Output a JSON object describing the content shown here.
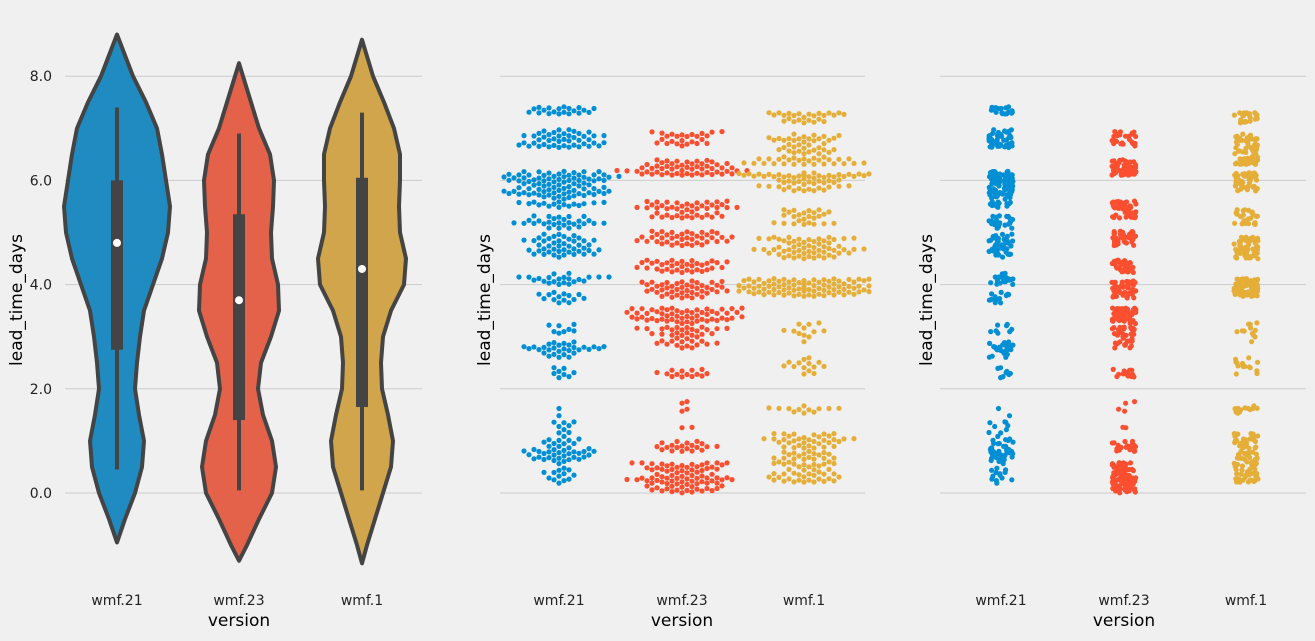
{
  "colors": {
    "background": "#f0f0f0",
    "grid": "#cbcbcb",
    "text": "#000000",
    "edge": "#444444",
    "violin_fills": [
      "#1f8bc1",
      "#e5624a",
      "#d0a54b"
    ],
    "point_colors": [
      "#008fd5",
      "#fc4f30",
      "#e5ae38"
    ]
  },
  "chart_data": [
    {
      "type": "violin",
      "xlabel": "version",
      "ylabel": "lead_time_days",
      "categories": [
        "wmf.21",
        "wmf.23",
        "wmf.1"
      ],
      "yticks": [
        "0.0",
        "2.0",
        "4.0",
        "6.0",
        "8.0"
      ],
      "ylim": [
        -1.7,
        9.0
      ],
      "grid": true,
      "violins": [
        {
          "name": "wmf.21",
          "min": 0.45,
          "q1": 2.75,
          "median": 4.8,
          "q3": 6.0,
          "max": 7.4,
          "extent": [
            -0.95,
            8.8
          ]
        },
        {
          "name": "wmf.23",
          "min": 0.05,
          "q1": 1.4,
          "median": 3.7,
          "q3": 5.35,
          "max": 6.9,
          "extent": [
            -1.3,
            8.25
          ]
        },
        {
          "name": "wmf.1",
          "min": 0.05,
          "q1": 1.65,
          "median": 4.3,
          "q3": 6.05,
          "max": 7.3,
          "extent": [
            -1.35,
            8.7
          ]
        }
      ]
    },
    {
      "type": "swarm",
      "xlabel": "version",
      "ylabel": "lead_time_days",
      "categories": [
        "wmf.21",
        "wmf.23",
        "wmf.1"
      ],
      "ylim": [
        -1.7,
        9.0
      ],
      "grid": true,
      "clusters": [
        [
          [
            0.5,
            0.8,
            30
          ],
          [
            0.85,
            0.5,
            25
          ],
          [
            1.4,
            0.5,
            10
          ],
          [
            2.3,
            0.3,
            8
          ],
          [
            2.75,
            0.3,
            30
          ],
          [
            3.15,
            0.2,
            8
          ],
          [
            3.75,
            0.2,
            14
          ],
          [
            4.1,
            0.25,
            22
          ],
          [
            4.75,
            0.45,
            45
          ],
          [
            5.2,
            0.25,
            28
          ],
          [
            5.65,
            0.35,
            45
          ],
          [
            6.0,
            0.35,
            60
          ],
          [
            6.8,
            0.35,
            45
          ],
          [
            7.35,
            0.15,
            20
          ]
        ],
        [
          [
            0.3,
            0.6,
            85
          ],
          [
            0.9,
            0.2,
            20
          ],
          [
            1.55,
            0.6,
            6
          ],
          [
            2.3,
            0.15,
            14
          ],
          [
            3.0,
            0.45,
            40
          ],
          [
            3.4,
            0.3,
            55
          ],
          [
            3.9,
            0.35,
            45
          ],
          [
            4.35,
            0.25,
            35
          ],
          [
            4.9,
            0.3,
            40
          ],
          [
            5.45,
            0.35,
            45
          ],
          [
            6.25,
            0.3,
            55
          ],
          [
            6.8,
            0.3,
            25
          ]
        ],
        [
          [
            0.5,
            0.6,
            60
          ],
          [
            1.0,
            0.3,
            35
          ],
          [
            1.6,
            0.15,
            12
          ],
          [
            2.45,
            0.35,
            14
          ],
          [
            3.1,
            0.4,
            12
          ],
          [
            3.95,
            0.35,
            90
          ],
          [
            4.7,
            0.45,
            60
          ],
          [
            5.3,
            0.3,
            25
          ],
          [
            5.95,
            0.3,
            35
          ],
          [
            6.1,
            0.1,
            25
          ],
          [
            6.6,
            0.6,
            65
          ],
          [
            7.2,
            0.2,
            25
          ]
        ]
      ]
    },
    {
      "type": "strip",
      "xlabel": "version",
      "ylabel": "lead_time_days",
      "categories": [
        "wmf.21",
        "wmf.23",
        "wmf.1"
      ],
      "ylim": [
        -1.7,
        9.0
      ],
      "grid": true
    }
  ]
}
